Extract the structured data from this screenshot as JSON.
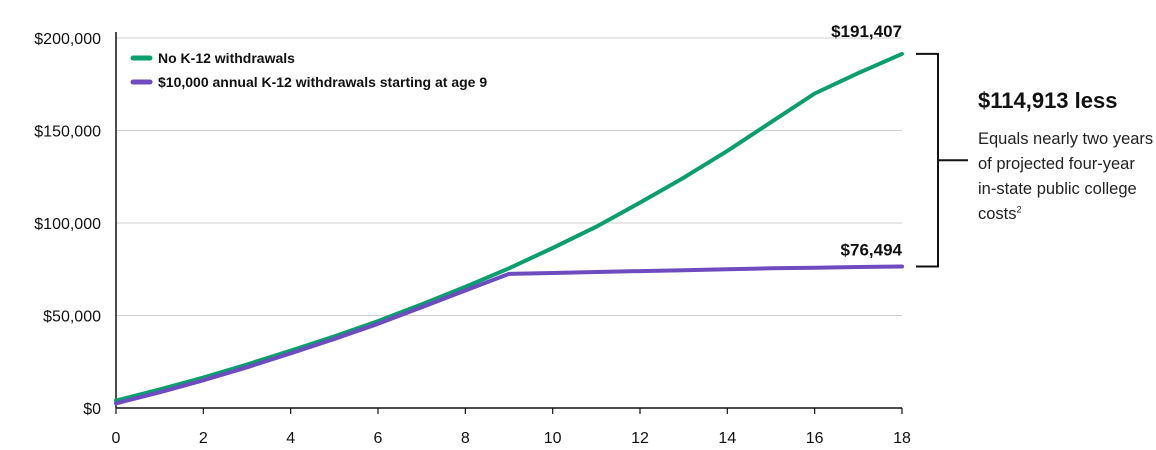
{
  "chart_data": {
    "type": "line",
    "title": "",
    "xlabel": "",
    "ylabel": "",
    "xlim": [
      0,
      18
    ],
    "ylim": [
      0,
      200000
    ],
    "x_ticks": [
      "0",
      "2",
      "4",
      "6",
      "8",
      "10",
      "12",
      "14",
      "16",
      "18"
    ],
    "y_ticks": [
      "$0",
      "$50,000",
      "$100,000",
      "$150,000",
      "$200,000"
    ],
    "grid": "horizontal",
    "legend_position": "top-left",
    "colors": {
      "no_withdrawals": "#0a9e6e",
      "with_withdrawals": "#6e4bbf"
    },
    "series": [
      {
        "name": "No K-12 withdrawals",
        "x": [
          0,
          1,
          2,
          3,
          4,
          5,
          6,
          7,
          8,
          9,
          10,
          11,
          12,
          13,
          14,
          15,
          16,
          17,
          18
        ],
        "values": [
          4000,
          10000,
          16500,
          23500,
          31000,
          38700,
          47000,
          56000,
          65500,
          75500,
          86500,
          98000,
          111000,
          124500,
          139000,
          154500,
          170000,
          181000,
          191407
        ]
      },
      {
        "name": "$10,000 annual K-12 withdrawals starting at age 9",
        "x": [
          0,
          1,
          2,
          3,
          4,
          5,
          6,
          7,
          8,
          9,
          10,
          11,
          12,
          13,
          14,
          15,
          16,
          17,
          18
        ],
        "values": [
          2500,
          8500,
          15000,
          22000,
          29500,
          37300,
          45500,
          54500,
          63500,
          72500,
          73000,
          73500,
          74000,
          74500,
          75000,
          75500,
          75800,
          76200,
          76494
        ]
      }
    ],
    "annotations": {
      "end_label_top": "$191,407",
      "end_label_bottom": "$76,494"
    }
  },
  "callout": {
    "headline": "$114,913 less",
    "body": "Equals nearly two years of projected four-year in-state public college costs",
    "footnote": "2"
  }
}
